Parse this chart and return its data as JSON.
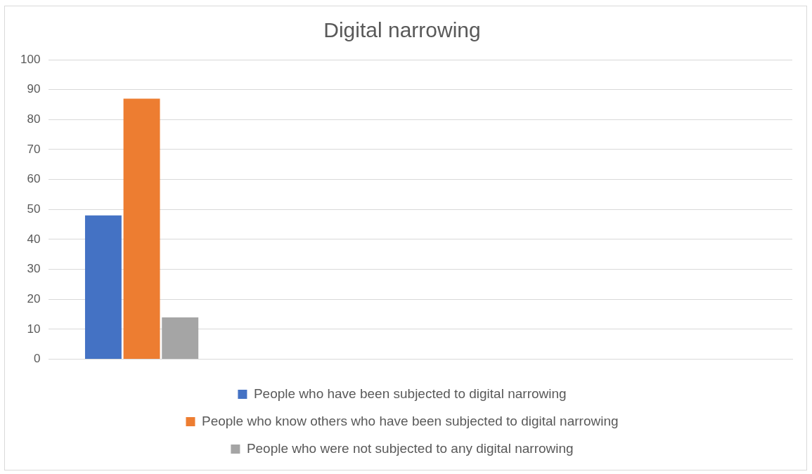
{
  "chart_data": {
    "type": "bar",
    "title": "Digital narrowing",
    "categories": [
      null,
      null,
      null,
      null
    ],
    "series": [
      {
        "name": "People who have been subjected to digital narrowing",
        "color": "#4472c4",
        "values": [
          48,
          null,
          null,
          null
        ]
      },
      {
        "name": "People who know others who have been subjected to digital narrowing",
        "color": "#ed7d31",
        "values": [
          87,
          null,
          null,
          null
        ]
      },
      {
        "name": "People who were not subjected to any digital narrowing",
        "color": "#a5a5a5",
        "values": [
          14,
          null,
          null,
          null
        ]
      }
    ],
    "ylim": [
      0,
      100
    ],
    "yticks": [
      0,
      10,
      20,
      30,
      40,
      50,
      60,
      70,
      80,
      90,
      100
    ],
    "grid": "y",
    "legend": "bottom"
  }
}
